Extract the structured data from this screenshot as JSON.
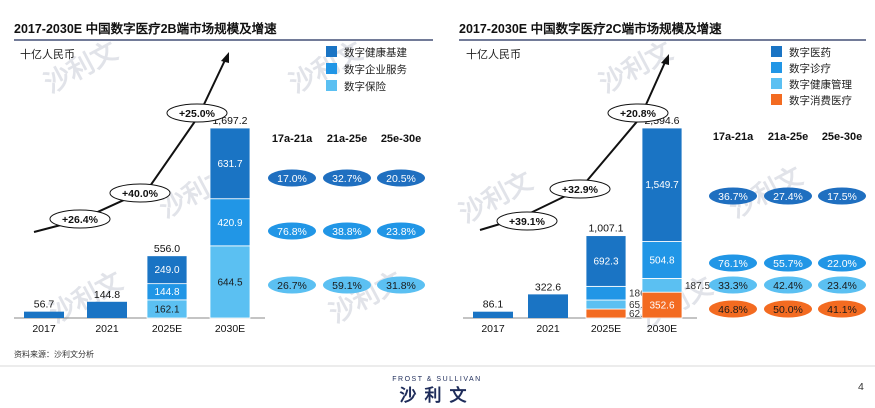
{
  "page": {
    "source_note": "资料来源：沙利文分析",
    "brand_small": "FROST & SULLIVAN",
    "brand_cn": "沙利文",
    "page_number": "4"
  },
  "colors": {
    "dark_blue": "#1a74c4",
    "mid_blue": "#2196e6",
    "light_blue": "#5bc0f2",
    "orange": "#f36b21",
    "navy": "#1e2c5a",
    "pill_dark": "#1f6fc0",
    "pill_mid": "#2196e6",
    "pill_light": "#5bc0f2",
    "pill_orange": "#f36b21"
  },
  "chart_data": [
    {
      "type": "bar",
      "title": "2017-2030E 中国数字医疗2B端市场规模及增速",
      "unit": "十亿人民币",
      "categories": [
        "2017",
        "2021",
        "2025E",
        "2030E"
      ],
      "series": [
        {
          "name": "数字健康基建",
          "values": [
            null,
            null,
            249.0,
            631.7
          ]
        },
        {
          "name": "数字企业服务",
          "values": [
            null,
            null,
            144.8,
            420.9
          ]
        },
        {
          "name": "数字保险",
          "values": [
            null,
            null,
            162.1,
            644.5
          ]
        }
      ],
      "totals": [
        56.7,
        144.8,
        556.0,
        1697.2
      ],
      "cagr_labels": [
        "+26.4%",
        "+40.0%",
        "+25.0%"
      ],
      "growth_table": {
        "headers": [
          "17a-21a",
          "21a-25e",
          "25e-30e"
        ],
        "rows": [
          {
            "series": "数字健康基建",
            "values": [
              "17.0%",
              "32.7%",
              "20.5%"
            ]
          },
          {
            "series": "数字企业服务",
            "values": [
              "76.8%",
              "38.8%",
              "23.8%"
            ]
          },
          {
            "series": "数字保险",
            "values": [
              "26.7%",
              "59.1%",
              "31.8%"
            ]
          }
        ]
      }
    },
    {
      "type": "bar",
      "title": "2017-2030E 中国数字医疗2C端市场规模及增速",
      "unit": "十亿人民币",
      "categories": [
        "2017",
        "2021",
        "2025E",
        "2030E"
      ],
      "series": [
        {
          "name": "数字医药",
          "values": [
            null,
            null,
            692.3,
            1549.7
          ]
        },
        {
          "name": "数字诊疗",
          "values": [
            null,
            null,
            186.4,
            504.8
          ]
        },
        {
          "name": "数字健康管理",
          "values": [
            null,
            null,
            65.5,
            187.5
          ]
        },
        {
          "name": "数字消费医疗",
          "values": [
            null,
            null,
            62.9,
            352.6
          ]
        }
      ],
      "totals": [
        86.1,
        322.6,
        1007.1,
        2594.6
      ],
      "cagr_labels": [
        "+39.1%",
        "+32.9%",
        "+20.8%"
      ],
      "growth_table": {
        "headers": [
          "17a-21a",
          "21a-25e",
          "25e-30e"
        ],
        "rows": [
          {
            "series": "数字医药",
            "values": [
              "36.7%",
              "27.4%",
              "17.5%"
            ]
          },
          {
            "series": "数字诊疗",
            "values": [
              "76.1%",
              "55.7%",
              "22.0%"
            ]
          },
          {
            "series": "数字健康管理",
            "values": [
              "33.3%",
              "42.4%",
              "23.4%"
            ]
          },
          {
            "series": "数字消费医疗",
            "values": [
              "46.8%",
              "50.0%",
              "41.1%"
            ]
          }
        ]
      }
    }
  ]
}
